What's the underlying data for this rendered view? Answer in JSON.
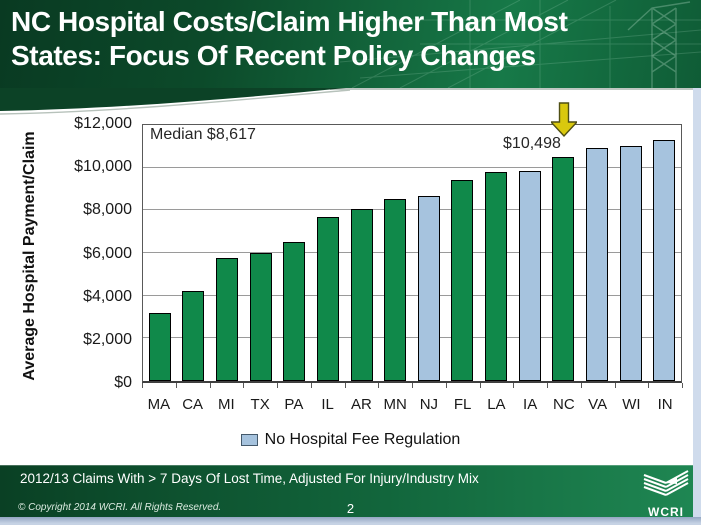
{
  "header": {
    "title_line1": "NC Hospital Costs/Claim Higher Than Most",
    "title_line2": "States: Focus Of Recent Policy Changes"
  },
  "chart_data": {
    "type": "bar",
    "title": "",
    "xlabel": "",
    "ylabel": "Average Hospital Payment/Claim",
    "ylim": [
      0,
      12000
    ],
    "grid": true,
    "ytick_values": [
      12000,
      10000,
      8000,
      6000,
      4000,
      2000,
      0
    ],
    "ytick_labels": [
      "$12,000",
      "$10,000",
      "$8,000",
      "$6,000",
      "$4,000",
      "$2,000",
      "$0"
    ],
    "categories": [
      "MA",
      "CA",
      "MI",
      "TX",
      "PA",
      "IL",
      "AR",
      "MN",
      "NJ",
      "FL",
      "LA",
      "IA",
      "NC",
      "VA",
      "WI",
      "IN"
    ],
    "values": [
      3200,
      4200,
      5750,
      6000,
      6500,
      7700,
      8050,
      8550,
      8684,
      9400,
      9800,
      9850,
      10498,
      10900,
      11000,
      11300
    ],
    "no_fee_regulation": [
      "NJ",
      "IA",
      "VA",
      "WI",
      "IN"
    ],
    "median": 8617,
    "annotations": {
      "median_label": "Median $8,617",
      "nc_state": "NC",
      "nc_value_label": "$10,498"
    },
    "legend": {
      "label": "No Hospital Fee Regulation",
      "position": "bottom-center"
    },
    "colors": {
      "regulated_bar": "#10894a",
      "unregulated_bar": "#a6c3de",
      "bar_border": "#000000",
      "gridline": "#9a9a9a",
      "plot_border": "#595959",
      "arrow_fill": "#d9c80e",
      "arrow_stroke": "#4f4f14",
      "header_green_dark": "#093a22",
      "header_green_light": "#177948",
      "footer_green_light": "#1f8753"
    }
  },
  "footer": {
    "footnote": "2012/13 Claims With > 7 Days Of Lost Time, Adjusted For Injury/Industry Mix",
    "copyright": "© Copyright 2014 WCRI. All Rights Reserved.",
    "page_number": "2",
    "logo_text": "WCRI"
  }
}
